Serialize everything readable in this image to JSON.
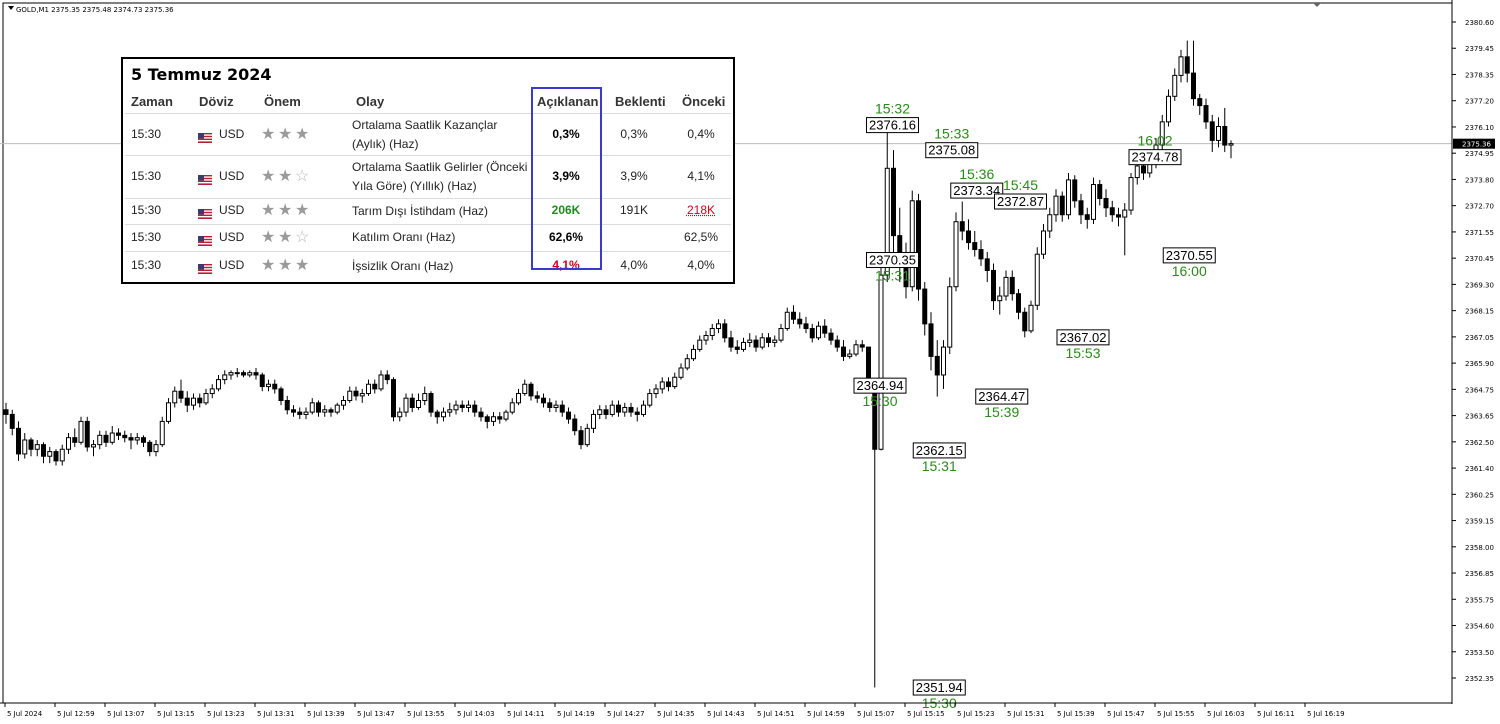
{
  "chart": {
    "title": "GOLD,M1  2375.35 2375.48 2374.73 2375.36",
    "current_price": "2375.36",
    "price_ticks": [
      "2380.60",
      "2379.45",
      "2378.35",
      "2377.20",
      "2376.10",
      "2374.95",
      "2373.80",
      "2372.70",
      "2371.55",
      "2370.45",
      "2369.30",
      "2368.15",
      "2367.05",
      "2365.90",
      "2364.75",
      "2363.65",
      "2362.50",
      "2361.40",
      "2360.25",
      "2359.15",
      "2358.00",
      "2356.85",
      "2355.75",
      "2354.60",
      "2353.50",
      "2352.35"
    ],
    "time_ticks": [
      "5 Jul 2024",
      "5 Jul 12:59",
      "5 Jul 13:07",
      "5 Jul 13:15",
      "5 Jul 13:23",
      "5 Jul 13:31",
      "5 Jul 13:39",
      "5 Jul 13:47",
      "5 Jul 13:55",
      "5 Jul 14:03",
      "5 Jul 14:11",
      "5 Jul 14:19",
      "5 Jul 14:27",
      "5 Jul 14:35",
      "5 Jul 14:43",
      "5 Jul 14:51",
      "5 Jul 14:59",
      "5 Jul 15:07",
      "5 Jul 15:15",
      "5 Jul 15:23",
      "5 Jul 15:31",
      "5 Jul 15:39",
      "5 Jul 15:47",
      "5 Jul 15:55",
      "5 Jul 16:03",
      "5 Jul 16:11",
      "5 Jul 16:19"
    ],
    "annotations": [
      {
        "time": "15:32",
        "price": "2376.16"
      },
      {
        "time": "15:33",
        "price": "2375.08"
      },
      {
        "time": "15:36",
        "price": "2373.34"
      },
      {
        "time": "15:45",
        "price": "2372.87"
      },
      {
        "time": "16:02",
        "price": "2374.78"
      },
      {
        "time": "15:31",
        "price": "2370.35"
      },
      {
        "time": "16:00",
        "price": "2370.55"
      },
      {
        "time": "15:53",
        "price": "2367.02"
      },
      {
        "time": "15:30",
        "price": "2364.94"
      },
      {
        "time": "15:39",
        "price": "2364.47"
      },
      {
        "time": "15:31",
        "price": "2362.15"
      },
      {
        "time": "15:30",
        "price": "2351.94"
      }
    ]
  },
  "chart_data": {
    "type": "candlestick",
    "symbol_timeframe": "GOLD,M1",
    "ylim": [
      2351.4,
      2381.0
    ],
    "x_start": "5 Jul 2024 12:51",
    "interval_minutes": 1,
    "y_axis_position": "right",
    "grid": false,
    "ohlc": [
      [
        2363.9,
        2364.2,
        2363.3,
        2363.7
      ],
      [
        2363.7,
        2363.9,
        2362.8,
        2363.1
      ],
      [
        2363.1,
        2363.4,
        2361.7,
        2362.0
      ],
      [
        2362.0,
        2362.9,
        2361.8,
        2362.6
      ],
      [
        2362.6,
        2362.7,
        2361.9,
        2362.2
      ],
      [
        2362.2,
        2362.6,
        2361.9,
        2362.4
      ],
      [
        2362.4,
        2362.5,
        2361.6,
        2361.9
      ],
      [
        2361.9,
        2362.3,
        2361.6,
        2362.1
      ],
      [
        2362.1,
        2362.2,
        2361.5,
        2361.7
      ],
      [
        2361.7,
        2362.4,
        2361.5,
        2362.2
      ],
      [
        2362.2,
        2362.9,
        2362.0,
        2362.7
      ],
      [
        2362.7,
        2363.1,
        2362.3,
        2362.5
      ],
      [
        2362.5,
        2363.6,
        2362.4,
        2363.4
      ],
      [
        2363.4,
        2363.6,
        2362.1,
        2362.3
      ],
      [
        2362.3,
        2362.6,
        2361.9,
        2362.4
      ],
      [
        2362.4,
        2363.0,
        2362.2,
        2362.8
      ],
      [
        2362.8,
        2363.0,
        2362.3,
        2362.5
      ],
      [
        2362.5,
        2363.2,
        2362.4,
        2362.9
      ],
      [
        2362.9,
        2363.1,
        2362.6,
        2362.8
      ],
      [
        2362.8,
        2363.0,
        2362.5,
        2362.7
      ],
      [
        2362.7,
        2362.9,
        2362.2,
        2362.6
      ],
      [
        2362.6,
        2362.9,
        2362.4,
        2362.7
      ],
      [
        2362.7,
        2362.8,
        2362.3,
        2362.5
      ],
      [
        2362.5,
        2362.6,
        2361.9,
        2362.1
      ],
      [
        2362.1,
        2362.6,
        2361.9,
        2362.4
      ],
      [
        2362.4,
        2363.6,
        2362.3,
        2363.4
      ],
      [
        2363.4,
        2364.4,
        2363.3,
        2364.2
      ],
      [
        2364.2,
        2364.9,
        2364.0,
        2364.7
      ],
      [
        2364.7,
        2365.2,
        2364.2,
        2364.4
      ],
      [
        2364.4,
        2364.7,
        2363.8,
        2364.1
      ],
      [
        2364.1,
        2364.6,
        2363.9,
        2364.4
      ],
      [
        2364.4,
        2364.6,
        2364.0,
        2364.2
      ],
      [
        2364.2,
        2364.8,
        2364.1,
        2364.6
      ],
      [
        2364.6,
        2365.0,
        2364.4,
        2364.8
      ],
      [
        2364.8,
        2365.4,
        2364.7,
        2365.2
      ],
      [
        2365.2,
        2365.6,
        2365.0,
        2365.4
      ],
      [
        2365.4,
        2365.6,
        2365.2,
        2365.5
      ],
      [
        2365.5,
        2365.7,
        2365.3,
        2365.5
      ],
      [
        2365.5,
        2365.6,
        2365.3,
        2365.4
      ],
      [
        2365.4,
        2365.6,
        2365.3,
        2365.5
      ],
      [
        2365.5,
        2365.7,
        2365.2,
        2365.4
      ],
      [
        2365.4,
        2365.5,
        2364.7,
        2364.9
      ],
      [
        2364.9,
        2365.2,
        2364.7,
        2365.0
      ],
      [
        2365.0,
        2365.2,
        2364.6,
        2364.8
      ],
      [
        2364.8,
        2364.9,
        2364.1,
        2364.3
      ],
      [
        2364.3,
        2364.5,
        2363.7,
        2363.9
      ],
      [
        2363.9,
        2364.1,
        2363.6,
        2363.8
      ],
      [
        2363.8,
        2364.0,
        2363.5,
        2363.7
      ],
      [
        2363.7,
        2364.0,
        2363.5,
        2363.8
      ],
      [
        2363.8,
        2364.4,
        2363.7,
        2364.2
      ],
      [
        2364.2,
        2364.3,
        2363.6,
        2363.8
      ],
      [
        2363.8,
        2364.1,
        2363.6,
        2363.9
      ],
      [
        2363.9,
        2364.0,
        2363.6,
        2363.8
      ],
      [
        2363.8,
        2364.2,
        2363.7,
        2364.1
      ],
      [
        2364.1,
        2364.5,
        2363.9,
        2364.3
      ],
      [
        2364.3,
        2364.9,
        2364.2,
        2364.7
      ],
      [
        2364.7,
        2364.9,
        2364.3,
        2364.5
      ],
      [
        2364.5,
        2364.8,
        2364.2,
        2364.6
      ],
      [
        2364.6,
        2365.2,
        2364.5,
        2365.0
      ],
      [
        2365.0,
        2365.2,
        2364.6,
        2364.8
      ],
      [
        2364.8,
        2365.6,
        2364.7,
        2365.4
      ],
      [
        2365.4,
        2365.6,
        2365.0,
        2365.2
      ],
      [
        2365.2,
        2365.3,
        2363.4,
        2363.6
      ],
      [
        2363.6,
        2364.0,
        2363.4,
        2363.8
      ],
      [
        2363.8,
        2364.6,
        2363.6,
        2364.4
      ],
      [
        2364.4,
        2364.6,
        2363.8,
        2364.0
      ],
      [
        2364.0,
        2364.6,
        2363.9,
        2364.3
      ],
      [
        2364.3,
        2364.9,
        2364.1,
        2364.6
      ],
      [
        2364.6,
        2364.7,
        2363.6,
        2363.8
      ],
      [
        2363.8,
        2363.9,
        2363.3,
        2363.6
      ],
      [
        2363.6,
        2364.0,
        2363.4,
        2363.8
      ],
      [
        2363.8,
        2364.2,
        2363.6,
        2363.9
      ],
      [
        2363.9,
        2364.3,
        2363.7,
        2364.1
      ],
      [
        2364.1,
        2364.3,
        2363.8,
        2364.0
      ],
      [
        2364.0,
        2364.3,
        2363.8,
        2364.1
      ],
      [
        2364.1,
        2364.3,
        2363.6,
        2363.8
      ],
      [
        2363.8,
        2364.0,
        2363.4,
        2363.6
      ],
      [
        2363.6,
        2363.7,
        2363.1,
        2363.4
      ],
      [
        2363.4,
        2363.8,
        2363.2,
        2363.6
      ],
      [
        2363.6,
        2363.8,
        2363.3,
        2363.5
      ],
      [
        2363.5,
        2363.9,
        2363.4,
        2363.8
      ],
      [
        2363.8,
        2364.4,
        2363.7,
        2364.2
      ],
      [
        2364.2,
        2364.8,
        2364.1,
        2364.6
      ],
      [
        2364.6,
        2365.2,
        2364.5,
        2365.0
      ],
      [
        2365.0,
        2365.1,
        2364.3,
        2364.5
      ],
      [
        2364.5,
        2364.7,
        2364.2,
        2364.4
      ],
      [
        2364.4,
        2364.6,
        2364.0,
        2364.2
      ],
      [
        2364.2,
        2364.4,
        2363.8,
        2364.0
      ],
      [
        2364.0,
        2364.3,
        2363.8,
        2364.1
      ],
      [
        2364.1,
        2364.3,
        2363.6,
        2363.8
      ],
      [
        2363.8,
        2364.0,
        2363.3,
        2363.5
      ],
      [
        2363.5,
        2363.7,
        2362.8,
        2363.0
      ],
      [
        2363.0,
        2363.2,
        2362.2,
        2362.4
      ],
      [
        2362.4,
        2363.3,
        2362.3,
        2363.1
      ],
      [
        2363.1,
        2363.9,
        2362.9,
        2363.7
      ],
      [
        2363.7,
        2364.1,
        2363.5,
        2363.9
      ],
      [
        2363.9,
        2364.1,
        2363.5,
        2363.7
      ],
      [
        2363.7,
        2364.3,
        2363.6,
        2364.1
      ],
      [
        2364.1,
        2364.3,
        2363.6,
        2363.8
      ],
      [
        2363.8,
        2364.2,
        2363.6,
        2364.0
      ],
      [
        2364.0,
        2364.2,
        2363.6,
        2363.8
      ],
      [
        2363.8,
        2364.0,
        2363.4,
        2363.7
      ],
      [
        2363.7,
        2364.3,
        2363.6,
        2364.1
      ],
      [
        2364.1,
        2364.8,
        2364.0,
        2364.6
      ],
      [
        2364.6,
        2365.0,
        2364.4,
        2364.8
      ],
      [
        2364.8,
        2365.3,
        2364.6,
        2365.1
      ],
      [
        2365.1,
        2365.3,
        2364.7,
        2364.9
      ],
      [
        2364.9,
        2365.5,
        2364.8,
        2365.3
      ],
      [
        2365.3,
        2365.9,
        2365.2,
        2365.7
      ],
      [
        2365.7,
        2366.3,
        2365.6,
        2366.1
      ],
      [
        2366.1,
        2366.7,
        2366.0,
        2366.5
      ],
      [
        2366.5,
        2367.1,
        2366.4,
        2366.9
      ],
      [
        2366.9,
        2367.3,
        2366.7,
        2367.1
      ],
      [
        2367.1,
        2367.6,
        2366.9,
        2367.4
      ],
      [
        2367.4,
        2367.8,
        2367.2,
        2367.6
      ],
      [
        2367.6,
        2367.8,
        2366.8,
        2367.0
      ],
      [
        2367.0,
        2367.3,
        2366.4,
        2366.6
      ],
      [
        2366.6,
        2366.9,
        2366.3,
        2366.5
      ],
      [
        2366.5,
        2367.0,
        2366.4,
        2366.8
      ],
      [
        2366.8,
        2367.2,
        2366.6,
        2366.9
      ],
      [
        2366.9,
        2367.1,
        2366.4,
        2366.6
      ],
      [
        2366.6,
        2367.2,
        2366.5,
        2367.0
      ],
      [
        2367.0,
        2367.2,
        2366.6,
        2366.8
      ],
      [
        2366.8,
        2367.1,
        2366.6,
        2366.9
      ],
      [
        2366.9,
        2367.6,
        2366.8,
        2367.4
      ],
      [
        2367.4,
        2368.3,
        2367.3,
        2368.1
      ],
      [
        2368.1,
        2368.4,
        2367.6,
        2367.8
      ],
      [
        2367.8,
        2368.1,
        2367.4,
        2367.6
      ],
      [
        2367.6,
        2367.9,
        2367.2,
        2367.4
      ],
      [
        2367.4,
        2367.6,
        2366.8,
        2367.0
      ],
      [
        2367.0,
        2367.7,
        2366.9,
        2367.5
      ],
      [
        2367.5,
        2367.8,
        2367.0,
        2367.2
      ],
      [
        2367.2,
        2367.4,
        2366.7,
        2366.9
      ],
      [
        2366.9,
        2367.1,
        2366.4,
        2366.6
      ],
      [
        2366.6,
        2366.9,
        2366.0,
        2366.2
      ],
      [
        2366.2,
        2366.5,
        2366.1,
        2366.3
      ],
      [
        2366.3,
        2366.9,
        2366.2,
        2366.7
      ],
      [
        2366.7,
        2366.9,
        2366.4,
        2366.6
      ],
      [
        2366.6,
        2366.6,
        2364.9,
        2364.94
      ],
      [
        2364.94,
        2365.0,
        2351.94,
        2362.2
      ],
      [
        2362.2,
        2370.35,
        2362.15,
        2369.7
      ],
      [
        2369.7,
        2376.16,
        2369.4,
        2374.3
      ],
      [
        2374.3,
        2375.08,
        2370.6,
        2371.4
      ],
      [
        2371.4,
        2372.6,
        2369.4,
        2370.1
      ],
      [
        2370.1,
        2371.1,
        2368.7,
        2369.2
      ],
      [
        2369.2,
        2373.34,
        2369.0,
        2372.9
      ],
      [
        2372.9,
        2373.2,
        2368.6,
        2369.1
      ],
      [
        2369.1,
        2369.4,
        2367.1,
        2367.6
      ],
      [
        2367.6,
        2368.1,
        2365.6,
        2366.2
      ],
      [
        2366.2,
        2366.9,
        2364.47,
        2365.4
      ],
      [
        2365.4,
        2366.9,
        2364.8,
        2366.6
      ],
      [
        2366.6,
        2369.6,
        2366.3,
        2369.2
      ],
      [
        2369.2,
        2372.4,
        2369.0,
        2372.0
      ],
      [
        2372.0,
        2372.87,
        2371.2,
        2371.6
      ],
      [
        2371.6,
        2372.1,
        2370.8,
        2371.1
      ],
      [
        2371.1,
        2371.6,
        2370.5,
        2370.8
      ],
      [
        2370.8,
        2371.2,
        2370.1,
        2370.4
      ],
      [
        2370.4,
        2370.7,
        2369.4,
        2369.9
      ],
      [
        2369.9,
        2370.2,
        2368.2,
        2368.6
      ],
      [
        2368.6,
        2369.2,
        2368.0,
        2368.8
      ],
      [
        2368.8,
        2369.9,
        2368.6,
        2369.6
      ],
      [
        2369.6,
        2369.9,
        2368.6,
        2368.9
      ],
      [
        2368.9,
        2369.1,
        2367.8,
        2368.1
      ],
      [
        2368.1,
        2368.3,
        2367.02,
        2367.3
      ],
      [
        2367.3,
        2368.6,
        2367.2,
        2368.4
      ],
      [
        2368.4,
        2370.9,
        2368.2,
        2370.6
      ],
      [
        2370.6,
        2371.9,
        2370.4,
        2371.6
      ],
      [
        2371.6,
        2372.6,
        2371.3,
        2372.3
      ],
      [
        2372.3,
        2373.4,
        2372.0,
        2373.1
      ],
      [
        2373.1,
        2373.3,
        2372.0,
        2372.3
      ],
      [
        2372.3,
        2374.1,
        2372.1,
        2373.8
      ],
      [
        2373.8,
        2374.0,
        2372.6,
        2372.9
      ],
      [
        2372.9,
        2373.2,
        2371.9,
        2372.3
      ],
      [
        2372.3,
        2372.6,
        2371.7,
        2372.1
      ],
      [
        2372.1,
        2373.9,
        2371.9,
        2373.6
      ],
      [
        2373.6,
        2373.8,
        2372.7,
        2373.0
      ],
      [
        2373.0,
        2373.4,
        2372.2,
        2372.6
      ],
      [
        2372.6,
        2372.9,
        2372.0,
        2372.3
      ],
      [
        2372.3,
        2372.6,
        2371.8,
        2372.2
      ],
      [
        2372.2,
        2372.8,
        2370.55,
        2372.5
      ],
      [
        2372.5,
        2374.1,
        2372.3,
        2373.9
      ],
      [
        2373.9,
        2374.78,
        2373.6,
        2374.4
      ],
      [
        2374.4,
        2374.7,
        2373.8,
        2374.1
      ],
      [
        2374.1,
        2374.7,
        2373.9,
        2374.5
      ],
      [
        2374.5,
        2375.6,
        2374.3,
        2375.3
      ],
      [
        2375.3,
        2376.6,
        2375.1,
        2376.3
      ],
      [
        2376.3,
        2377.7,
        2376.1,
        2377.4
      ],
      [
        2377.4,
        2378.6,
        2377.2,
        2378.3
      ],
      [
        2378.3,
        2379.4,
        2378.0,
        2379.1
      ],
      [
        2379.1,
        2379.8,
        2378.0,
        2378.4
      ],
      [
        2378.4,
        2379.8,
        2377.0,
        2377.3
      ],
      [
        2377.3,
        2377.5,
        2376.6,
        2377.0
      ],
      [
        2377.0,
        2377.3,
        2376.0,
        2376.3
      ],
      [
        2376.3,
        2376.6,
        2375.0,
        2375.5
      ],
      [
        2375.5,
        2376.5,
        2375.2,
        2376.1
      ],
      [
        2376.1,
        2376.9,
        2375.0,
        2375.3
      ],
      [
        2375.3,
        2375.5,
        2374.73,
        2375.36
      ]
    ]
  },
  "calendar": {
    "title": "5 Temmuz 2024",
    "headers": {
      "time": "Zaman",
      "currency": "Döviz",
      "importance": "Önem",
      "event": "Olay",
      "actual": "Açıklanan",
      "forecast": "Beklenti",
      "previous": "Önceki"
    },
    "rows": [
      {
        "time": "15:30",
        "currency": "USD",
        "stars": 3,
        "event": "Ortalama Saatlik Kazançlar (Aylık) (Haz)",
        "actual": "0,3%",
        "forecast": "0,3%",
        "previous": "0,4%"
      },
      {
        "time": "15:30",
        "currency": "USD",
        "stars": 2,
        "event": "Ortalama Saatlik Gelirler (Önceki Yıla Göre) (Yıllık) (Haz)",
        "actual": "3,9%",
        "forecast": "3,9%",
        "previous": "4,1%"
      },
      {
        "time": "15:30",
        "currency": "USD",
        "stars": 3,
        "event": "Tarım Dışı İstihdam (Haz)",
        "actual": "206K",
        "forecast": "191K",
        "previous": "218K"
      },
      {
        "time": "15:30",
        "currency": "USD",
        "stars": 2,
        "event": "Katılım Oranı (Haz)",
        "actual": "62,6%",
        "forecast": "",
        "previous": "62,5%"
      },
      {
        "time": "15:30",
        "currency": "USD",
        "stars": 3,
        "event": "İşsizlik Oranı (Haz)",
        "actual": "4,1%",
        "forecast": "4,0%",
        "previous": "4,0%"
      }
    ],
    "colors": {
      "up": "#1e8a1e",
      "down": "#d0021b",
      "highlight": "#3a3ad0"
    },
    "actual_colors": [
      "#000000",
      "#000000",
      "#1e8a1e",
      "#000000",
      "#d0021b"
    ],
    "previous_colors": [
      "#222222",
      "#222222",
      "#d0021b",
      "#222222",
      "#222222"
    ]
  }
}
